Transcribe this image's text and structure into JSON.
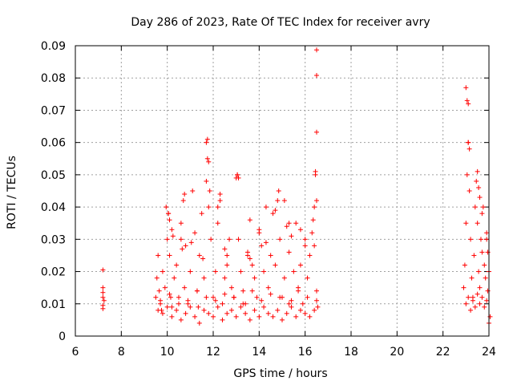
{
  "chart_data": {
    "type": "scatter",
    "title": "Day 286 of 2023, Rate Of TEC Index for receiver avry",
    "xlabel": "GPS time / hours",
    "ylabel": "ROTI / TECUs",
    "xlim": [
      6,
      24
    ],
    "ylim": [
      0,
      0.09
    ],
    "x_ticks": [
      "6",
      "8",
      "10",
      "12",
      "14",
      "16",
      "18",
      "20",
      "22",
      "24"
    ],
    "y_ticks": [
      "0",
      "0.01",
      "0.02",
      "0.03",
      "0.04",
      "0.05",
      "0.06",
      "0.07",
      "0.08",
      "0.09"
    ],
    "grid": true,
    "marker": "+",
    "color": "#ff0000",
    "series": [
      {
        "x": [
          7.2,
          7.2,
          7.2,
          7.2,
          7.2,
          7.2,
          7.25,
          9.5,
          9.55,
          9.6,
          9.65,
          9.7,
          9.75,
          9.8,
          9.9,
          10.0,
          10.05,
          10.1,
          10.15,
          10.2,
          10.3,
          10.4,
          10.5,
          10.6,
          10.7,
          10.75,
          10.8,
          10.9,
          11.0,
          11.1,
          11.2,
          11.3,
          11.35,
          11.4,
          11.5,
          11.6,
          11.7,
          11.75,
          11.8,
          11.9,
          12.0,
          12.1,
          12.2,
          12.3,
          12.4,
          12.5,
          12.6,
          12.7,
          12.8,
          12.9,
          13.0,
          13.05,
          13.1,
          13.2,
          13.3,
          13.4,
          13.5,
          13.6,
          13.7,
          13.8,
          13.9,
          14.0,
          14.1,
          14.2,
          14.3,
          14.4,
          14.5,
          14.6,
          14.7,
          14.8,
          14.9,
          15.0,
          15.1,
          15.2,
          15.3,
          15.4,
          15.5,
          15.6,
          15.7,
          15.8,
          15.9,
          16.0,
          16.1,
          16.2,
          16.3,
          16.35,
          16.4,
          16.45,
          16.5,
          16.5,
          16.5,
          16.45,
          16.5,
          16.4,
          16.5,
          16.55,
          9.6,
          9.8,
          10.0,
          10.2,
          10.4,
          10.6,
          10.8,
          11.0,
          11.2,
          11.4,
          11.6,
          11.8,
          12.0,
          12.2,
          12.4,
          12.6,
          12.8,
          13.0,
          13.2,
          13.4,
          13.6,
          13.8,
          14.0,
          14.2,
          14.4,
          14.6,
          14.8,
          15.0,
          15.2,
          15.4,
          15.6,
          15.8,
          16.0,
          16.2,
          16.4,
          9.7,
          10.1,
          10.5,
          10.9,
          11.3,
          11.7,
          12.1,
          12.5,
          12.9,
          13.3,
          13.7,
          14.1,
          14.5,
          14.9,
          15.3,
          15.7,
          16.1,
          16.5,
          11.75,
          11.8,
          11.7,
          11.85,
          13.05,
          13.1,
          14.85,
          15.1,
          14.7,
          10.75,
          12.3,
          12.2,
          9.95,
          10.05,
          10.1,
          10.2,
          10.25,
          10.6,
          10.65,
          11.05,
          11.55,
          12.5,
          12.6,
          13.5,
          13.6,
          14.0,
          14.3,
          15.3,
          15.4,
          15.8,
          16.0,
          22.9,
          22.95,
          23.0,
          23.05,
          23.1,
          23.15,
          23.2,
          23.25,
          23.3,
          23.35,
          23.4,
          23.45,
          23.5,
          23.55,
          23.6,
          23.65,
          23.7,
          23.75,
          23.8,
          23.85,
          23.9,
          23.95,
          24.0,
          23.0,
          23.1,
          23.2,
          23.3,
          23.4,
          23.5,
          23.6,
          23.7,
          23.8,
          23.9,
          23.0,
          23.05,
          23.1,
          23.1,
          23.15,
          23.5,
          23.55,
          23.6,
          23.7,
          23.9,
          23.95,
          24.0,
          24.05
        ],
        "y": [
          0.0205,
          0.015,
          0.0135,
          0.012,
          0.0095,
          0.0085,
          0.011,
          0.012,
          0.018,
          0.025,
          0.014,
          0.01,
          0.008,
          0.02,
          0.015,
          0.03,
          0.038,
          0.025,
          0.012,
          0.009,
          0.018,
          0.022,
          0.01,
          0.035,
          0.042,
          0.015,
          0.028,
          0.011,
          0.02,
          0.045,
          0.032,
          0.014,
          0.009,
          0.025,
          0.038,
          0.018,
          0.06,
          0.055,
          0.04,
          0.03,
          0.012,
          0.02,
          0.035,
          0.042,
          0.01,
          0.018,
          0.025,
          0.03,
          0.015,
          0.012,
          0.049,
          0.05,
          0.03,
          0.02,
          0.014,
          0.01,
          0.025,
          0.036,
          0.022,
          0.018,
          0.012,
          0.032,
          0.028,
          0.02,
          0.04,
          0.015,
          0.025,
          0.038,
          0.022,
          0.042,
          0.03,
          0.012,
          0.018,
          0.034,
          0.026,
          0.011,
          0.02,
          0.035,
          0.015,
          0.022,
          0.01,
          0.03,
          0.018,
          0.025,
          0.032,
          0.036,
          0.04,
          0.051,
          0.0887,
          0.0808,
          0.0632,
          0.05,
          0.042,
          0.028,
          0.014,
          0.009,
          0.008,
          0.007,
          0.009,
          0.006,
          0.008,
          0.005,
          0.007,
          0.009,
          0.006,
          0.004,
          0.008,
          0.007,
          0.006,
          0.009,
          0.005,
          0.007,
          0.008,
          0.006,
          0.009,
          0.007,
          0.005,
          0.008,
          0.006,
          0.009,
          0.007,
          0.006,
          0.008,
          0.005,
          0.007,
          0.009,
          0.006,
          0.008,
          0.007,
          0.006,
          0.008,
          0.011,
          0.013,
          0.012,
          0.01,
          0.014,
          0.012,
          0.011,
          0.013,
          0.012,
          0.01,
          0.014,
          0.011,
          0.013,
          0.012,
          0.01,
          0.014,
          0.012,
          0.011,
          0.061,
          0.054,
          0.048,
          0.045,
          0.05,
          0.049,
          0.045,
          0.042,
          0.039,
          0.044,
          0.044,
          0.04,
          0.04,
          0.038,
          0.036,
          0.033,
          0.031,
          0.03,
          0.027,
          0.029,
          0.024,
          0.027,
          0.022,
          0.026,
          0.024,
          0.033,
          0.029,
          0.035,
          0.031,
          0.033,
          0.028,
          0.015,
          0.022,
          0.035,
          0.05,
          0.06,
          0.045,
          0.03,
          0.018,
          0.012,
          0.025,
          0.04,
          0.048,
          0.035,
          0.02,
          0.015,
          0.03,
          0.026,
          0.04,
          0.022,
          0.018,
          0.03,
          0.014,
          0.004,
          0.01,
          0.012,
          0.008,
          0.011,
          0.009,
          0.013,
          0.01,
          0.012,
          0.009,
          0.011,
          0.077,
          0.073,
          0.072,
          0.06,
          0.058,
          0.051,
          0.046,
          0.043,
          0.038,
          0.032,
          0.026,
          0.02,
          0.006
        ]
      }
    ]
  }
}
